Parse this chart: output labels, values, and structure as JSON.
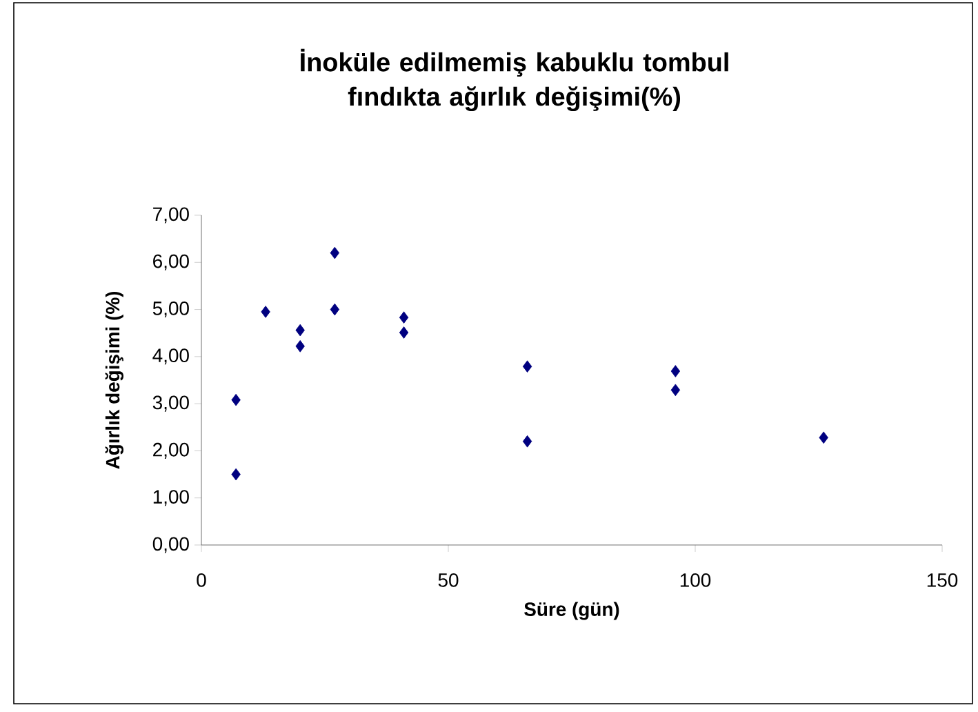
{
  "chart_data": {
    "type": "scatter",
    "title": "İnoküle edilmemiş kabuklu tombul fındıkta ağırlık değişimi(%)",
    "xlabel": "Süre (gün)",
    "ylabel": "Ağırlık değişimi (%)",
    "marker": "diamond",
    "grid": false,
    "xlim": [
      0,
      150
    ],
    "xticks": [
      0,
      50,
      100,
      150
    ],
    "ylim": [
      0,
      7
    ],
    "yticks": [
      {
        "value": 0,
        "label": "0,00"
      },
      {
        "value": 1,
        "label": "1,00"
      },
      {
        "value": 2,
        "label": "2,00"
      },
      {
        "value": 3,
        "label": "3,00"
      },
      {
        "value": 4,
        "label": "4,00"
      },
      {
        "value": 5,
        "label": "5,00"
      },
      {
        "value": 6,
        "label": "6,00"
      },
      {
        "value": 7,
        "label": "7,00"
      }
    ],
    "series": [
      {
        "color": "#000080",
        "x": [
          7,
          7,
          13,
          20,
          20,
          27,
          27,
          41,
          41,
          66,
          66,
          96,
          96,
          126
        ],
        "values": [
          3.08,
          1.5,
          4.95,
          4.56,
          4.22,
          6.2,
          5.0,
          4.83,
          4.51,
          3.79,
          2.2,
          3.69,
          3.29,
          2.28
        ]
      }
    ]
  }
}
